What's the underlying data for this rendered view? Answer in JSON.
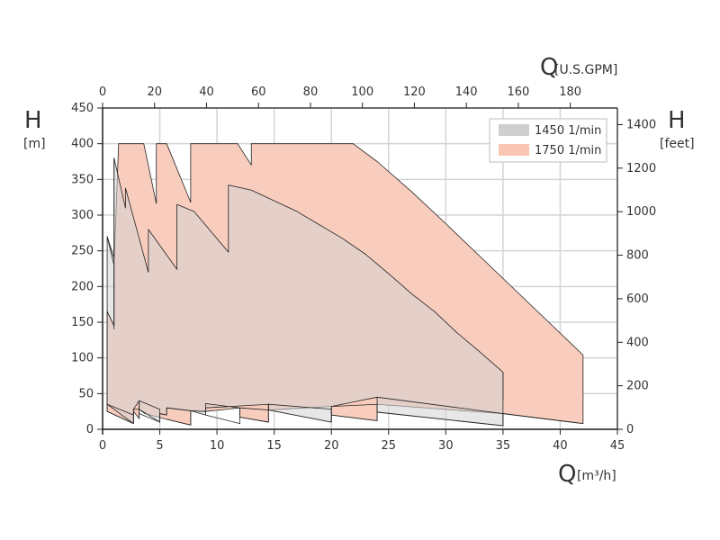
{
  "chart_data": {
    "type": "area",
    "axes": {
      "x_bottom": {
        "symbol": "Q",
        "unit": "[m³/h]",
        "range": [
          0,
          45
        ],
        "ticks": [
          0,
          5,
          10,
          15,
          20,
          25,
          30,
          35,
          40,
          45
        ]
      },
      "x_top": {
        "symbol": "Q",
        "unit": "[U.S.GPM]",
        "ticks": [
          0,
          20,
          40,
          60,
          80,
          100,
          120,
          140,
          160,
          180
        ]
      },
      "y_left": {
        "symbol": "H",
        "unit": "[m]",
        "range": [
          0,
          450
        ],
        "ticks": [
          0,
          50,
          100,
          150,
          200,
          250,
          300,
          350,
          400,
          450
        ]
      },
      "y_right": {
        "symbol": "H",
        "unit": "[feet]",
        "ticks": [
          0,
          200,
          400,
          600,
          800,
          1000,
          1200,
          1400
        ]
      }
    },
    "grid": true,
    "legend_position": "top-right",
    "series": [
      {
        "name": "1750 1/min",
        "color": "#f9cdbd",
        "polygon": [
          [
            0.4,
            165
          ],
          [
            1.0,
            145
          ],
          [
            1.0,
            230
          ],
          [
            1.4,
            400
          ],
          [
            3.6,
            400
          ],
          [
            4.7,
            316
          ],
          [
            4.7,
            400
          ],
          [
            5.6,
            400
          ],
          [
            7.7,
            318
          ],
          [
            7.7,
            400
          ],
          [
            11.8,
            400
          ],
          [
            13.0,
            370
          ],
          [
            13.0,
            400
          ],
          [
            21.9,
            400
          ],
          [
            24.0,
            375
          ],
          [
            27.0,
            333
          ],
          [
            30.0,
            288
          ],
          [
            33.0,
            242
          ],
          [
            36.0,
            196
          ],
          [
            39.0,
            150
          ],
          [
            42.0,
            104
          ],
          [
            42.0,
            55
          ],
          [
            42.0,
            8
          ],
          [
            35.0,
            22
          ],
          [
            24.0,
            35
          ],
          [
            24.0,
            12
          ],
          [
            20.0,
            20
          ],
          [
            20.0,
            32
          ],
          [
            14.5,
            27
          ],
          [
            14.5,
            10
          ],
          [
            12.0,
            17
          ],
          [
            12.0,
            30
          ],
          [
            9.0,
            25
          ],
          [
            7.7,
            26
          ],
          [
            7.7,
            6
          ],
          [
            5.6,
            14
          ],
          [
            3.7,
            22
          ],
          [
            3.2,
            28
          ],
          [
            3.2,
            15
          ],
          [
            2.7,
            25
          ],
          [
            2.7,
            8
          ],
          [
            0.4,
            25
          ]
        ]
      },
      {
        "name": "1450 1/min",
        "color": "#d3d3d3",
        "polygon": [
          [
            0.4,
            270
          ],
          [
            1.0,
            240
          ],
          [
            1.0,
            380
          ],
          [
            2.0,
            310
          ],
          [
            2.0,
            338
          ],
          [
            4.0,
            220
          ],
          [
            4.0,
            280
          ],
          [
            6.5,
            224
          ],
          [
            6.5,
            315
          ],
          [
            8.0,
            305
          ],
          [
            11.0,
            248
          ],
          [
            11.0,
            342
          ],
          [
            13.0,
            335
          ],
          [
            15.0,
            320
          ],
          [
            17.0,
            305
          ],
          [
            19.0,
            286
          ],
          [
            21.0,
            267
          ],
          [
            23.0,
            245
          ],
          [
            25.0,
            218
          ],
          [
            27.0,
            190
          ],
          [
            29.0,
            165
          ],
          [
            31.0,
            135
          ],
          [
            33.0,
            108
          ],
          [
            35.0,
            80
          ],
          [
            35.0,
            40
          ],
          [
            35.0,
            5
          ],
          [
            24.0,
            24
          ],
          [
            24.0,
            45
          ],
          [
            20.0,
            32
          ],
          [
            20.0,
            10
          ],
          [
            14.5,
            27
          ],
          [
            14.5,
            35
          ],
          [
            9.0,
            30
          ],
          [
            9.0,
            20
          ],
          [
            7.7,
            26
          ],
          [
            5.6,
            30
          ],
          [
            5.6,
            20
          ],
          [
            5.0,
            22
          ],
          [
            5.0,
            10
          ],
          [
            3.2,
            28
          ],
          [
            3.2,
            40
          ],
          [
            2.7,
            28
          ],
          [
            2.7,
            8
          ],
          [
            0.4,
            35
          ]
        ]
      }
    ],
    "outlines": [
      [
        [
          0.4,
          165
        ],
        [
          1.0,
          145
        ],
        [
          1.0,
          230
        ],
        [
          0.4,
          270
        ]
      ],
      [
        [
          1.0,
          380
        ],
        [
          1.0,
          140
        ]
      ],
      [
        [
          2.7,
          8
        ],
        [
          0.4,
          25
        ],
        [
          0.4,
          35
        ],
        [
          2.7,
          20
        ]
      ],
      [
        [
          2.7,
          8
        ],
        [
          2.7,
          28
        ]
      ],
      [
        [
          3.2,
          15
        ],
        [
          3.2,
          40
        ]
      ],
      [
        [
          2.7,
          28
        ],
        [
          3.2,
          28
        ]
      ],
      [
        [
          3.2,
          40
        ],
        [
          5.0,
          28
        ],
        [
          5.0,
          10
        ],
        [
          3.2,
          22
        ]
      ],
      [
        [
          5.0,
          22
        ],
        [
          5.6,
          20
        ],
        [
          5.6,
          30
        ]
      ],
      [
        [
          5.6,
          14
        ],
        [
          7.7,
          6
        ],
        [
          7.7,
          26
        ],
        [
          5.6,
          30
        ]
      ],
      [
        [
          7.7,
          26
        ],
        [
          9.0,
          25
        ]
      ],
      [
        [
          9.0,
          20
        ],
        [
          9.0,
          36
        ],
        [
          12.0,
          30
        ],
        [
          12.0,
          8
        ],
        [
          9.0,
          20
        ]
      ],
      [
        [
          12.0,
          30
        ],
        [
          14.5,
          27
        ],
        [
          14.5,
          35
        ]
      ],
      [
        [
          12.0,
          17
        ],
        [
          14.5,
          10
        ],
        [
          14.5,
          35
        ],
        [
          20.0,
          28
        ],
        [
          20.0,
          10
        ]
      ],
      [
        [
          20.0,
          32
        ],
        [
          24.0,
          35
        ],
        [
          24.0,
          12
        ],
        [
          20.0,
          20
        ]
      ],
      [
        [
          24.0,
          45
        ],
        [
          35.0,
          22
        ],
        [
          35.0,
          5
        ],
        [
          24.0,
          24
        ]
      ],
      [
        [
          35.0,
          22
        ],
        [
          42.0,
          8
        ]
      ],
      [
        [
          35.0,
          80
        ],
        [
          35.0,
          40
        ]
      ]
    ]
  },
  "legend": [
    {
      "label": "1450 1/min",
      "color": "#cfcfcf"
    },
    {
      "label": "1750 1/min",
      "color": "#f9c6b4"
    }
  ]
}
